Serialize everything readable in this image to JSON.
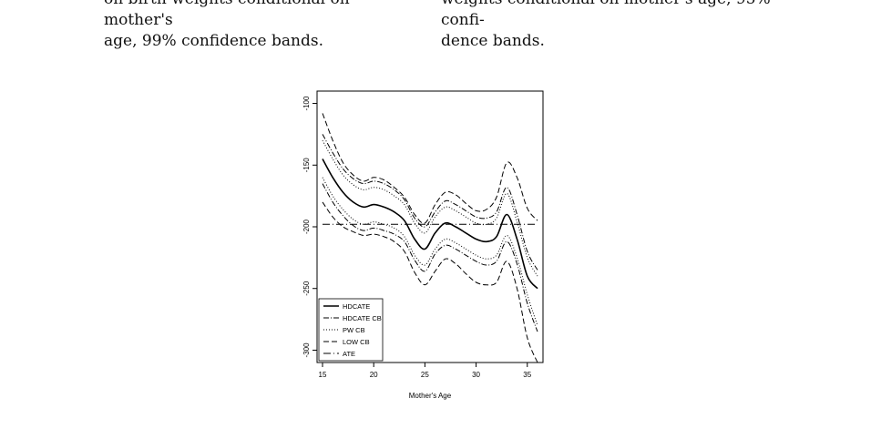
{
  "captions": {
    "left_lines": [
      "on birth weights conditional on mother's",
      "age, 99% confidence bands."
    ],
    "right_lines": [
      "weights conditional on mother's age, 95% confi-",
      "dence bands."
    ]
  },
  "chart_data": {
    "type": "line",
    "xlabel": "Mother's Age",
    "ylabel": "",
    "xlim": [
      15,
      36
    ],
    "ylim": [
      -310,
      -90
    ],
    "xticks": [
      15,
      20,
      25,
      30,
      35
    ],
    "yticks": [
      -100,
      -150,
      -200,
      -250,
      -300
    ],
    "legend_position": "bottom-left",
    "x": [
      15,
      16,
      17,
      18,
      19,
      20,
      21,
      22,
      23,
      24,
      25,
      26,
      27,
      28,
      29,
      30,
      31,
      32,
      33,
      34,
      35,
      36
    ],
    "series": [
      {
        "name": "HDCATE",
        "style": "solid",
        "values": [
          -145,
          -160,
          -172,
          -180,
          -184,
          -182,
          -184,
          -188,
          -195,
          -210,
          -218,
          -205,
          -197,
          -200,
          -205,
          -210,
          -212,
          -208,
          -190,
          -210,
          -240,
          -250
        ]
      },
      {
        "name": "HDCATE CB",
        "style": "dashdot",
        "group": [
          [
            -125,
            -140,
            -153,
            -161,
            -165,
            -163,
            -165,
            -170,
            -178,
            -193,
            -200,
            -188,
            -179,
            -182,
            -187,
            -192,
            -193,
            -188,
            -168,
            -190,
            -220,
            -235
          ],
          [
            -165,
            -180,
            -191,
            -199,
            -203,
            -201,
            -203,
            -206,
            -212,
            -227,
            -236,
            -222,
            -215,
            -218,
            -223,
            -228,
            -231,
            -228,
            -212,
            -230,
            -262,
            -285
          ]
        ]
      },
      {
        "name": "PW CB",
        "style": "dotted",
        "group": [
          [
            -130,
            -145,
            -158,
            -166,
            -170,
            -168,
            -170,
            -175,
            -182,
            -197,
            -205,
            -192,
            -184,
            -187,
            -192,
            -197,
            -198,
            -193,
            -173,
            -196,
            -225,
            -240
          ],
          [
            -160,
            -175,
            -186,
            -194,
            -198,
            -196,
            -198,
            -201,
            -208,
            -223,
            -231,
            -218,
            -210,
            -213,
            -218,
            -223,
            -226,
            -223,
            -207,
            -225,
            -255,
            -280
          ]
        ]
      },
      {
        "name": "LOW CB",
        "style": "dashed",
        "group": [
          [
            -108,
            -130,
            -148,
            -158,
            -163,
            -160,
            -162,
            -168,
            -176,
            -190,
            -197,
            -182,
            -172,
            -174,
            -181,
            -187,
            -186,
            -176,
            -148,
            -160,
            -185,
            -195
          ],
          [
            -180,
            -192,
            -200,
            -204,
            -207,
            -206,
            -208,
            -212,
            -220,
            -237,
            -247,
            -236,
            -226,
            -230,
            -238,
            -245,
            -247,
            -245,
            -228,
            -250,
            -290,
            -310
          ]
        ]
      },
      {
        "name": "ATE",
        "style": "dashdot-long",
        "values": [
          -198,
          -198,
          -198,
          -198,
          -198,
          -198,
          -198,
          -198,
          -198,
          -198,
          -198,
          -198,
          -198,
          -198,
          -198,
          -198,
          -198,
          -198,
          -198,
          -198,
          -198,
          -198
        ]
      }
    ]
  }
}
